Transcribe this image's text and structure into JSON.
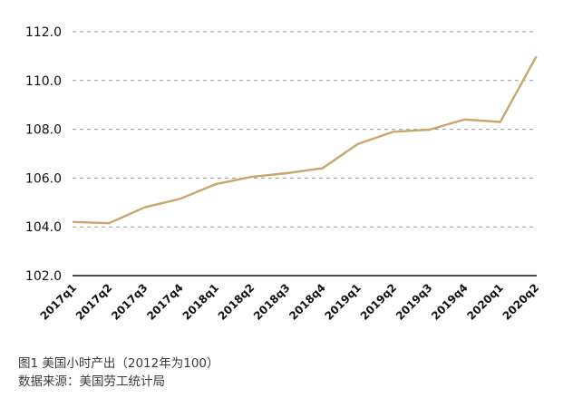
{
  "chart_data": {
    "type": "line",
    "title": "图1 美国小时产出（2012年为100）",
    "source": "数据来源：美国劳工统计局",
    "xlabel": "",
    "ylabel": "",
    "ylim": [
      102,
      112
    ],
    "yticks": [
      "102.0",
      "104.0",
      "106.0",
      "108.0",
      "110.0",
      "112.0"
    ],
    "ytick_values": [
      102,
      104,
      106,
      108,
      110,
      112
    ],
    "grid": "horizontal-dashed",
    "categories": [
      "2017q1",
      "2017q2",
      "2017q3",
      "2017q4",
      "2018q1",
      "2018q2",
      "2018q3",
      "2018q4",
      "2019q1",
      "2019q2",
      "2019q3",
      "2019q4",
      "2020q1",
      "2020q2"
    ],
    "series": [
      {
        "name": "美国小时产出",
        "color": "#c9a66b",
        "values": [
          104.2,
          104.15,
          104.8,
          105.15,
          105.75,
          106.05,
          106.2,
          106.4,
          107.4,
          107.9,
          107.98,
          108.4,
          108.3,
          110.95
        ]
      }
    ]
  }
}
